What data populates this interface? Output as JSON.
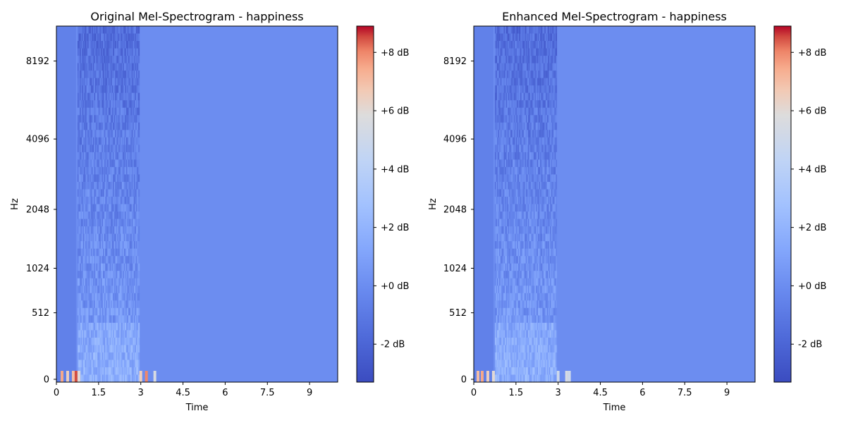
{
  "chart_data": [
    {
      "type": "heatmap",
      "title": "Original Mel-Spectrogram - happiness",
      "xlabel": "Time",
      "ylabel": "Hz",
      "xlim": [
        0,
        10.0
      ],
      "x_ticks": [
        "0",
        "1.5",
        "3",
        "4.5",
        "6",
        "7.5",
        "9"
      ],
      "x_tick_values": [
        0,
        1.5,
        3,
        4.5,
        6,
        7.5,
        9
      ],
      "y_ticks": [
        "0",
        "512",
        "1024",
        "2048",
        "4096",
        "8192"
      ],
      "y_scale": "mel",
      "colorbar": {
        "ticks": [
          "-2 dB",
          "+0 dB",
          "+2 dB",
          "+4 dB",
          "+6 dB",
          "+8 dB"
        ],
        "tick_values": [
          -2,
          0,
          2,
          4,
          6,
          8
        ],
        "range": [
          -3.3,
          8.9
        ],
        "colormap": "coolwarm"
      },
      "speech_segment": [
        0.75,
        2.95
      ],
      "background_level_db": 0.0,
      "hot_spots": [
        {
          "time": 0.2,
          "level": 7.5
        },
        {
          "time": 0.4,
          "level": 6.5
        },
        {
          "time": 0.6,
          "level": 7.0
        },
        {
          "time": 0.7,
          "level": 8.5
        },
        {
          "time": 0.8,
          "level": 6.0
        },
        {
          "time": 3.0,
          "level": 6.5
        },
        {
          "time": 3.2,
          "level": 8.0
        },
        {
          "time": 3.5,
          "level": 5.5
        }
      ]
    },
    {
      "type": "heatmap",
      "title": "Enhanced Mel-Spectrogram - happiness",
      "xlabel": "Time",
      "ylabel": "Hz",
      "xlim": [
        0,
        10.0
      ],
      "x_ticks": [
        "0",
        "1.5",
        "3",
        "4.5",
        "6",
        "7.5",
        "9"
      ],
      "x_tick_values": [
        0,
        1.5,
        3,
        4.5,
        6,
        7.5,
        9
      ],
      "y_ticks": [
        "0",
        "512",
        "1024",
        "2048",
        "4096",
        "8192"
      ],
      "y_scale": "mel",
      "colorbar": {
        "ticks": [
          "-2 dB",
          "+0 dB",
          "+2 dB",
          "+4 dB",
          "+6 dB",
          "+8 dB"
        ],
        "tick_values": [
          -2,
          0,
          2,
          4,
          6,
          8
        ],
        "range": [
          -3.3,
          8.9
        ],
        "colormap": "coolwarm"
      },
      "speech_segment": [
        0.75,
        2.95
      ],
      "background_level_db": 0.0,
      "hot_spots": [
        {
          "time": 0.15,
          "level": 7.0
        },
        {
          "time": 0.3,
          "level": 7.5
        },
        {
          "time": 0.5,
          "level": 6.5
        },
        {
          "time": 0.7,
          "level": 6.0
        },
        {
          "time": 3.0,
          "level": 5.0
        },
        {
          "time": 3.3,
          "level": 5.5
        },
        {
          "time": 3.4,
          "level": 5.0
        }
      ]
    }
  ]
}
